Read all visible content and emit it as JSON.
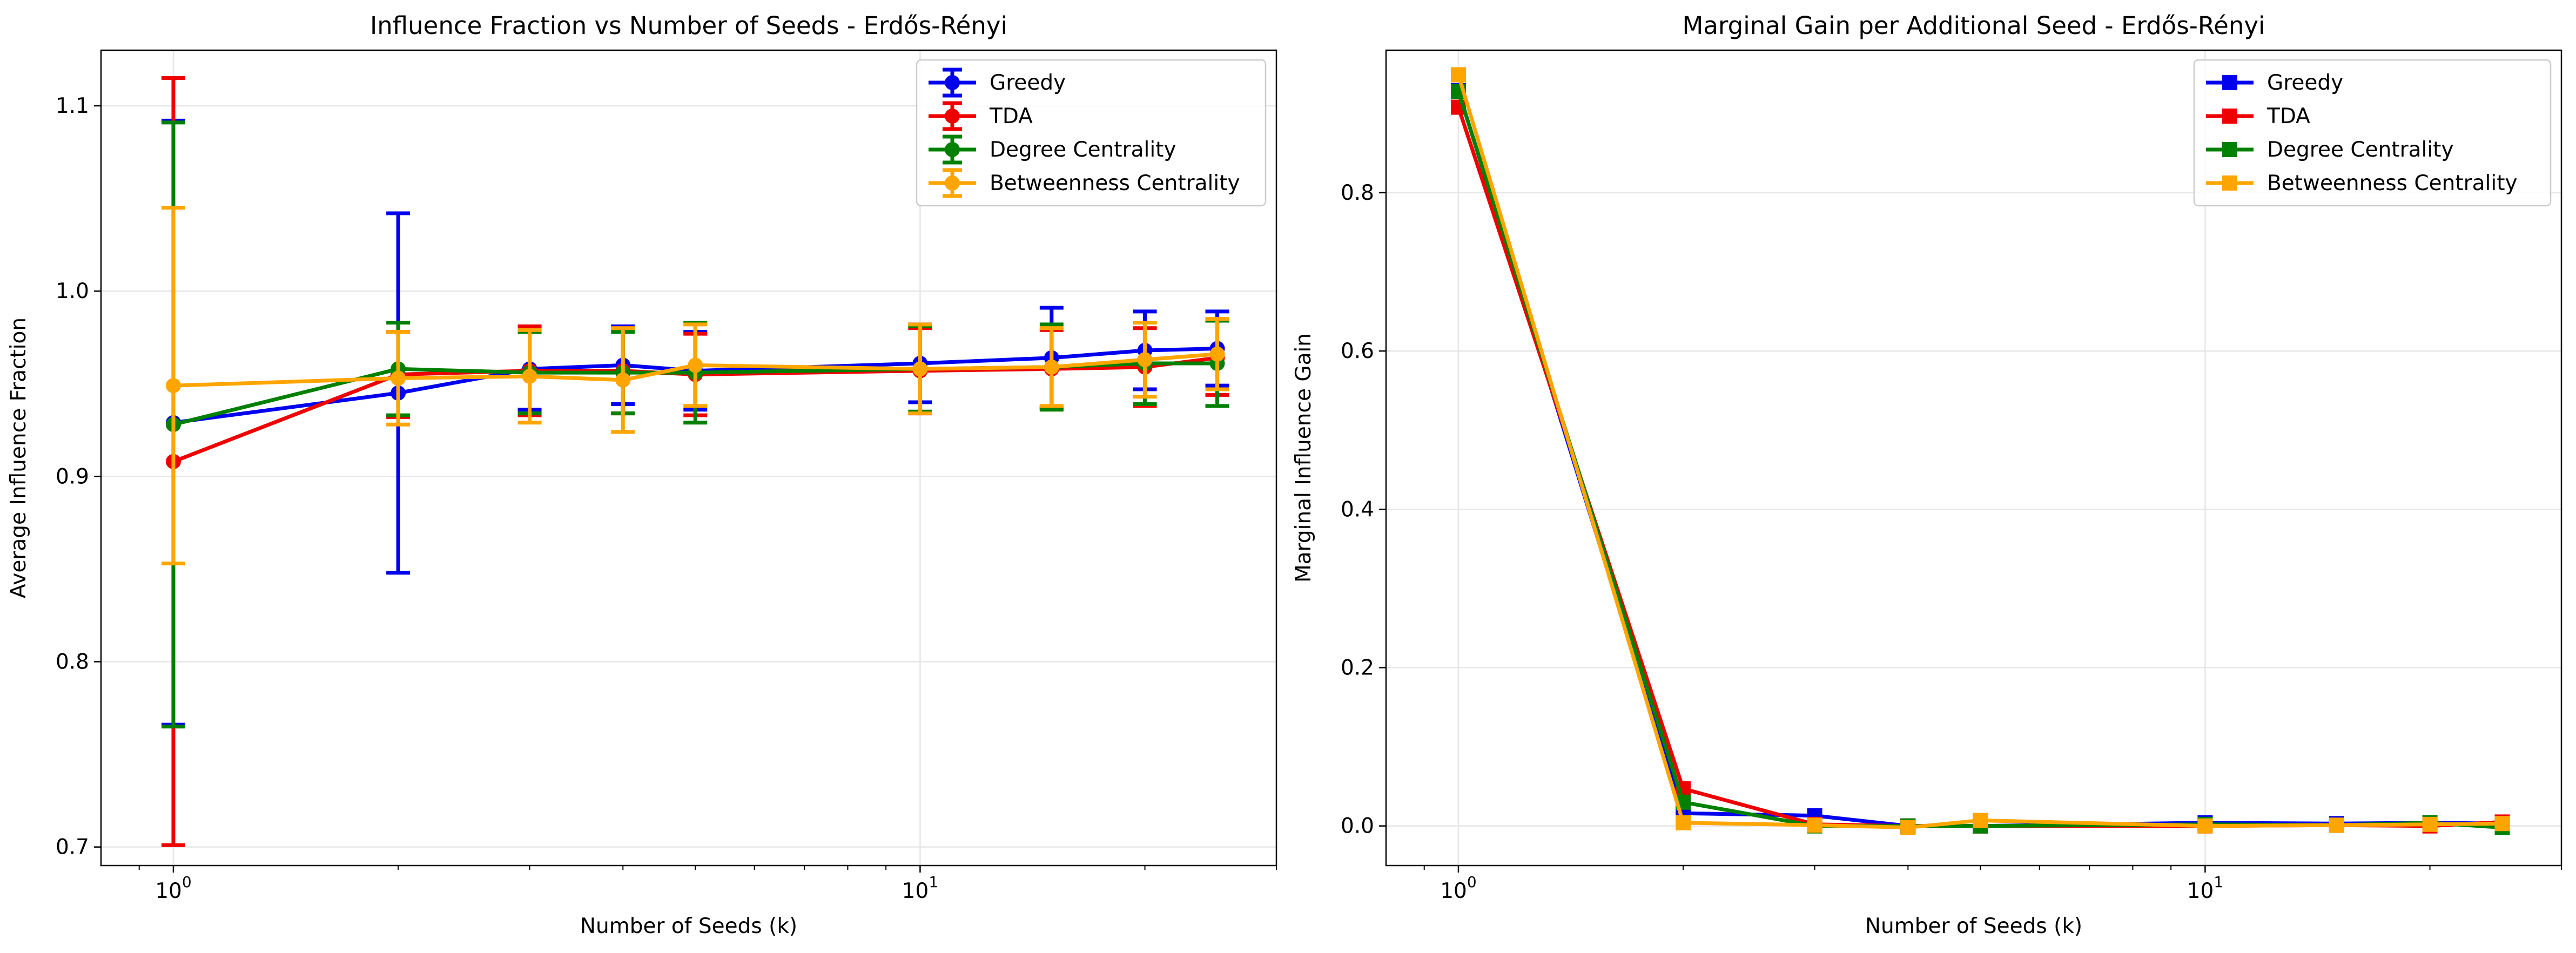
{
  "chart_data": [
    {
      "type": "line",
      "title": "Influence Fraction vs Number of Seeds - Erdős-Rényi",
      "xlabel": "Number of Seeds (k)",
      "ylabel": "Average Influence Fraction",
      "xscale": "log",
      "x_ticks": [
        {
          "value": 1,
          "base": "10",
          "exp": "0"
        },
        {
          "value": 10,
          "base": "10",
          "exp": "1"
        }
      ],
      "y_ticks": [
        "0.7",
        "0.8",
        "0.9",
        "1.0",
        "1.1"
      ],
      "xlim": [
        0.8,
        30
      ],
      "ylim": [
        0.69,
        1.13
      ],
      "grid": true,
      "legend_position": "top-right",
      "error_bars": true,
      "marker": "circle",
      "series": [
        {
          "name": "Greedy",
          "color": "#0000ee",
          "x": [
            1,
            2,
            3,
            4,
            5,
            10,
            15,
            20,
            25
          ],
          "y": [
            0.929,
            0.945,
            0.958,
            0.96,
            0.957,
            0.961,
            0.964,
            0.968,
            0.969
          ],
          "err": [
            0.163,
            0.097,
            0.022,
            0.021,
            0.021,
            0.021,
            0.027,
            0.021,
            0.02
          ]
        },
        {
          "name": "TDA",
          "color": "#ee0000",
          "x": [
            1,
            2,
            3,
            4,
            5,
            10,
            15,
            20,
            25
          ],
          "y": [
            0.908,
            0.955,
            0.957,
            0.957,
            0.955,
            0.957,
            0.958,
            0.959,
            0.964
          ],
          "err": [
            0.207,
            0.023,
            0.024,
            0.023,
            0.022,
            0.023,
            0.021,
            0.021,
            0.02
          ]
        },
        {
          "name": "Degree Centrality",
          "color": "#008000",
          "x": [
            1,
            2,
            3,
            4,
            5,
            10,
            15,
            20,
            25
          ],
          "y": [
            0.928,
            0.958,
            0.956,
            0.956,
            0.956,
            0.958,
            0.959,
            0.961,
            0.961
          ],
          "err": [
            0.163,
            0.025,
            0.022,
            0.022,
            0.027,
            0.023,
            0.023,
            0.022,
            0.023
          ]
        },
        {
          "name": "Betweenness Centrality",
          "color": "#ffa500",
          "x": [
            1,
            2,
            3,
            4,
            5,
            10,
            15,
            20,
            25
          ],
          "y": [
            0.949,
            0.953,
            0.954,
            0.952,
            0.96,
            0.958,
            0.959,
            0.963,
            0.966
          ],
          "err": [
            0.096,
            0.025,
            0.025,
            0.028,
            0.022,
            0.024,
            0.021,
            0.02,
            0.019
          ]
        }
      ]
    },
    {
      "type": "line",
      "title": "Marginal Gain per Additional Seed - Erdős-Rényi",
      "xlabel": "Number of Seeds (k)",
      "ylabel": "Marginal Influence Gain",
      "xscale": "log",
      "x_ticks": [
        {
          "value": 1,
          "base": "10",
          "exp": "0"
        },
        {
          "value": 10,
          "base": "10",
          "exp": "1"
        }
      ],
      "y_ticks": [
        "0.0",
        "0.2",
        "0.4",
        "0.6",
        "0.8"
      ],
      "xlim": [
        0.8,
        30
      ],
      "ylim": [
        -0.05,
        0.98
      ],
      "grid": true,
      "legend_position": "top-right",
      "error_bars": false,
      "marker": "square",
      "series": [
        {
          "name": "Greedy",
          "color": "#0000ee",
          "x": [
            1,
            2,
            3,
            4,
            5,
            10,
            15,
            20,
            25
          ],
          "y": [
            0.929,
            0.016,
            0.013,
            0.0,
            0.0,
            0.004,
            0.003,
            0.004,
            0.003
          ]
        },
        {
          "name": "TDA",
          "color": "#ee0000",
          "x": [
            1,
            2,
            3,
            4,
            5,
            10,
            15,
            20,
            25
          ],
          "y": [
            0.908,
            0.047,
            0.002,
            0.0,
            0.0,
            0.0,
            0.001,
            0.0,
            0.005
          ]
        },
        {
          "name": "Degree Centrality",
          "color": "#008000",
          "x": [
            1,
            2,
            3,
            4,
            5,
            10,
            15,
            20,
            25
          ],
          "y": [
            0.928,
            0.03,
            0.0,
            0.0,
            0.0,
            0.002,
            0.001,
            0.004,
            -0.002
          ]
        },
        {
          "name": "Betweenness Centrality",
          "color": "#ffa500",
          "x": [
            1,
            2,
            3,
            4,
            5,
            10,
            15,
            20,
            25
          ],
          "y": [
            0.949,
            0.004,
            0.001,
            -0.002,
            0.007,
            0.0,
            0.001,
            0.002,
            0.003
          ]
        }
      ]
    }
  ]
}
